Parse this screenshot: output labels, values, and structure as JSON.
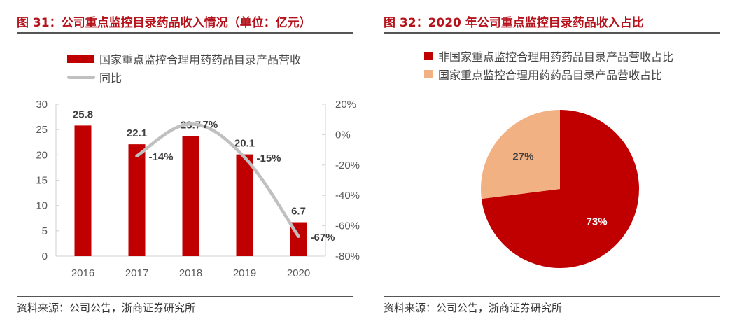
{
  "left": {
    "title": "图 31：公司重点监控目录药品收入情况（单位：亿元）",
    "source": "资料来源：公司公告，浙商证券研究所",
    "legend": [
      {
        "label": "国家重点监控合理用药药品目录产品营收",
        "color": "#c00000",
        "kind": "bar"
      },
      {
        "label": "同比",
        "color": "#c0c0c0",
        "kind": "line"
      }
    ]
  },
  "right": {
    "title": "图 32：2020 年公司重点监控目录药品收入占比",
    "source": "资料来源：公司公告，浙商证券研究所",
    "legend": [
      {
        "label": "非国家重点监控合理用药药品目录产品营收占比",
        "color": "#c00000"
      },
      {
        "label": "国家重点监控合理用药药品目录产品营收占比",
        "color": "#f2b183"
      }
    ]
  },
  "chart_data": [
    {
      "type": "bar",
      "title": "图 31：公司重点监控目录药品收入情况（单位：亿元）",
      "categories": [
        "2016",
        "2017",
        "2018",
        "2019",
        "2020"
      ],
      "series": [
        {
          "name": "国家重点监控合理用药药品目录产品营收",
          "type": "bar",
          "axis": "left",
          "color": "#c00000",
          "values": [
            25.8,
            22.1,
            23.7,
            20.1,
            6.7
          ],
          "labels": [
            "25.8",
            "22.1",
            "23.7",
            "20.1",
            "6.7"
          ]
        },
        {
          "name": "同比",
          "type": "line",
          "axis": "right",
          "color": "#c0c0c0",
          "values": [
            null,
            -14,
            7,
            -15,
            -67
          ],
          "labels": [
            "",
            "-14%",
            "7%",
            "-15%",
            "-67%"
          ]
        }
      ],
      "y_left": {
        "min": 0,
        "max": 30,
        "ticks": [
          0,
          5,
          10,
          15,
          20,
          25,
          30
        ],
        "tick_labels": [
          "0",
          "5",
          "10",
          "15",
          "20",
          "25",
          "30"
        ]
      },
      "y_right": {
        "min": -80,
        "max": 20,
        "ticks": [
          -80,
          -60,
          -40,
          -20,
          0,
          20
        ],
        "tick_labels": [
          "-80%",
          "-60%",
          "-40%",
          "-20%",
          "0%",
          "20%"
        ]
      },
      "grid": false,
      "legend_position": "top"
    },
    {
      "type": "pie",
      "title": "图 32：2020 年公司重点监控目录药品收入占比",
      "slices": [
        {
          "name": "非国家重点监控合理用药药品目录产品营收占比",
          "value": 73,
          "label": "73%",
          "color": "#c00000"
        },
        {
          "name": "国家重点监控合理用药药品目录产品营收占比",
          "value": 27,
          "label": "27%",
          "color": "#f2b183"
        }
      ],
      "legend_position": "top"
    }
  ]
}
